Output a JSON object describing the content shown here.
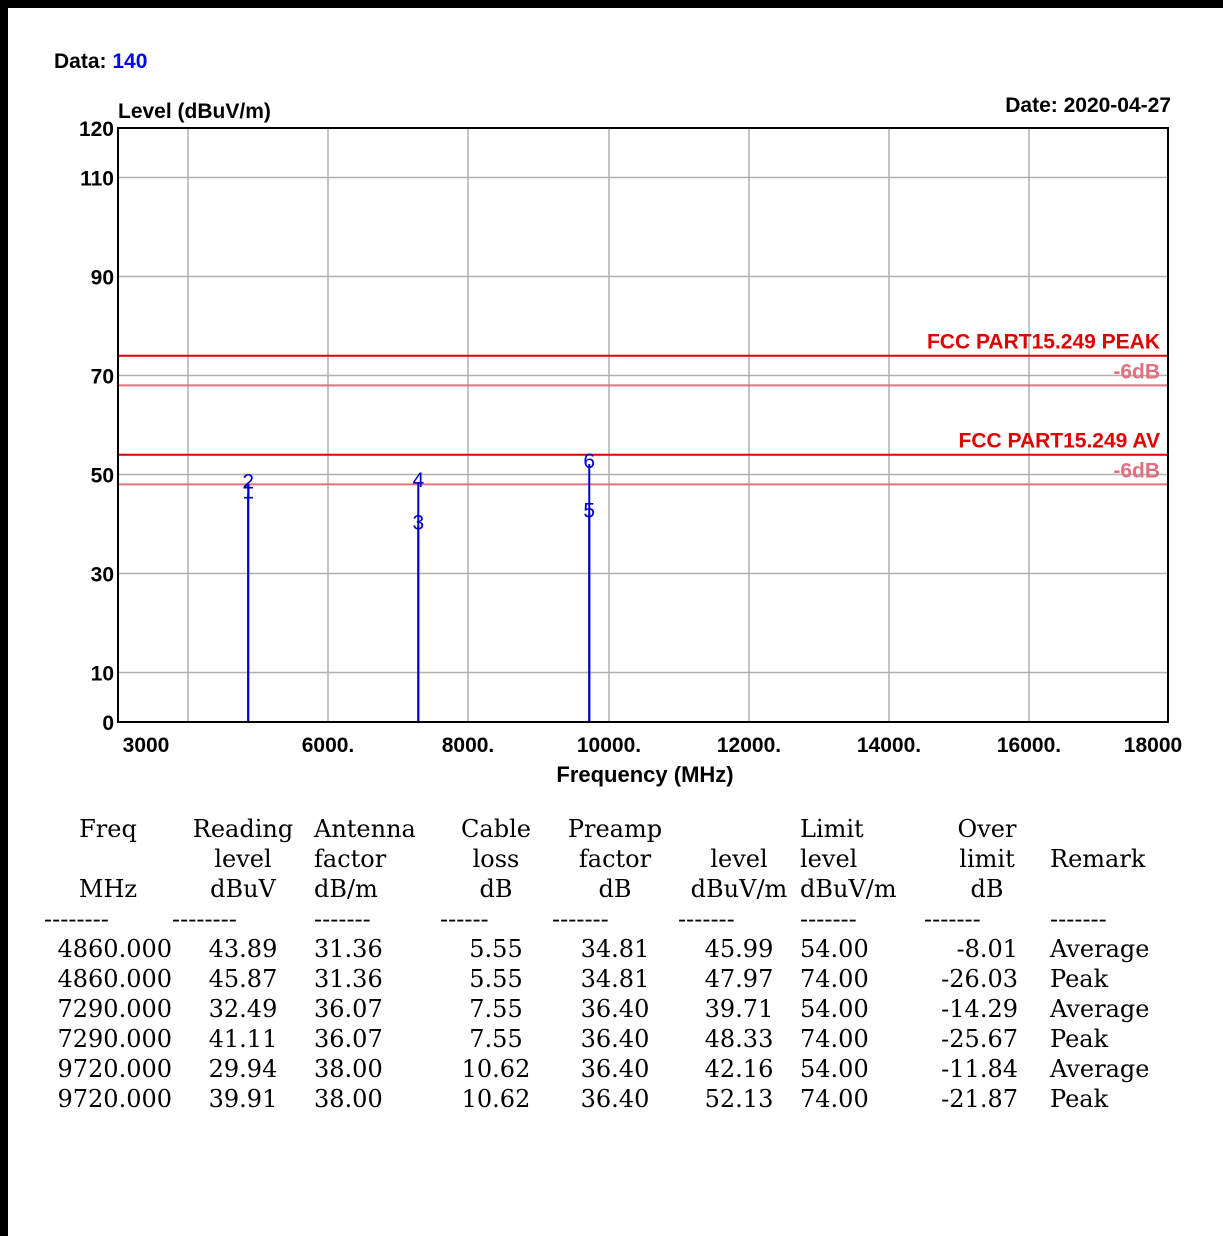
{
  "header": {
    "data_label": "Data: ",
    "data_value": "140",
    "date": "Date: 2020-04-27"
  },
  "chart_data": {
    "type": "line",
    "ylabel": "Level (dBuV/m)",
    "xlabel": "Frequency (MHz)",
    "ylim": [
      0,
      120
    ],
    "yticks": [
      0,
      10,
      30,
      50,
      70,
      90,
      110,
      120
    ],
    "xticks": [
      "3000",
      "6000.",
      "8000.",
      "10000.",
      "12000.",
      "14000.",
      "16000.",
      "18000"
    ],
    "grid": true,
    "limit_lines": [
      {
        "label": "FCC PART15.249 PEAK",
        "value": 74,
        "color": "#e00000"
      },
      {
        "label": "-6dB",
        "value": 68,
        "color": "#e07080"
      },
      {
        "label": "FCC PART15.249 AV",
        "value": 54,
        "color": "#e00000"
      },
      {
        "label": "-6dB",
        "value": 48,
        "color": "#e07080"
      }
    ],
    "markers": [
      {
        "label": "1",
        "freq": 4860,
        "level": 45.99
      },
      {
        "label": "2",
        "freq": 4860,
        "level": 47.97
      },
      {
        "label": "3",
        "freq": 7290,
        "level": 39.71
      },
      {
        "label": "4",
        "freq": 7290,
        "level": 48.33
      },
      {
        "label": "5",
        "freq": 9720,
        "level": 42.16
      },
      {
        "label": "6",
        "freq": 9720,
        "level": 52.13
      }
    ],
    "marker_color": "#0000cc"
  },
  "table": {
    "headers": [
      [
        "Freq",
        "Reading",
        "Antenna",
        "Cable",
        "Preamp",
        "",
        "Limit",
        "Over",
        ""
      ],
      [
        "",
        "level",
        "factor",
        "loss",
        "factor",
        "level",
        "level",
        "limit",
        "Remark"
      ],
      [
        "MHz",
        "dBuV",
        "dB/m",
        "dB",
        "dB",
        "dBuV/m",
        "dBuV/m",
        "dB",
        ""
      ]
    ],
    "separators": [
      "--------",
      "--------",
      "-------",
      "------",
      "-------",
      "-------",
      "-------",
      "-------",
      "-------"
    ],
    "rows": [
      [
        "4860.000",
        "43.89",
        "31.36",
        "5.55",
        "34.81",
        "45.99",
        "54.00",
        "-8.01",
        "Average"
      ],
      [
        "4860.000",
        "45.87",
        "31.36",
        "5.55",
        "34.81",
        "47.97",
        "74.00",
        "-26.03",
        "Peak"
      ],
      [
        "7290.000",
        "32.49",
        "36.07",
        "7.55",
        "36.40",
        "39.71",
        "54.00",
        "-14.29",
        "Average"
      ],
      [
        "7290.000",
        "41.11",
        "36.07",
        "7.55",
        "36.40",
        "48.33",
        "74.00",
        "-25.67",
        "Peak"
      ],
      [
        "9720.000",
        "29.94",
        "38.00",
        "10.62",
        "36.40",
        "42.16",
        "54.00",
        "-11.84",
        "Average"
      ],
      [
        "9720.000",
        "39.91",
        "38.00",
        "10.62",
        "36.40",
        "52.13",
        "74.00",
        "-21.87",
        "Peak"
      ]
    ]
  }
}
